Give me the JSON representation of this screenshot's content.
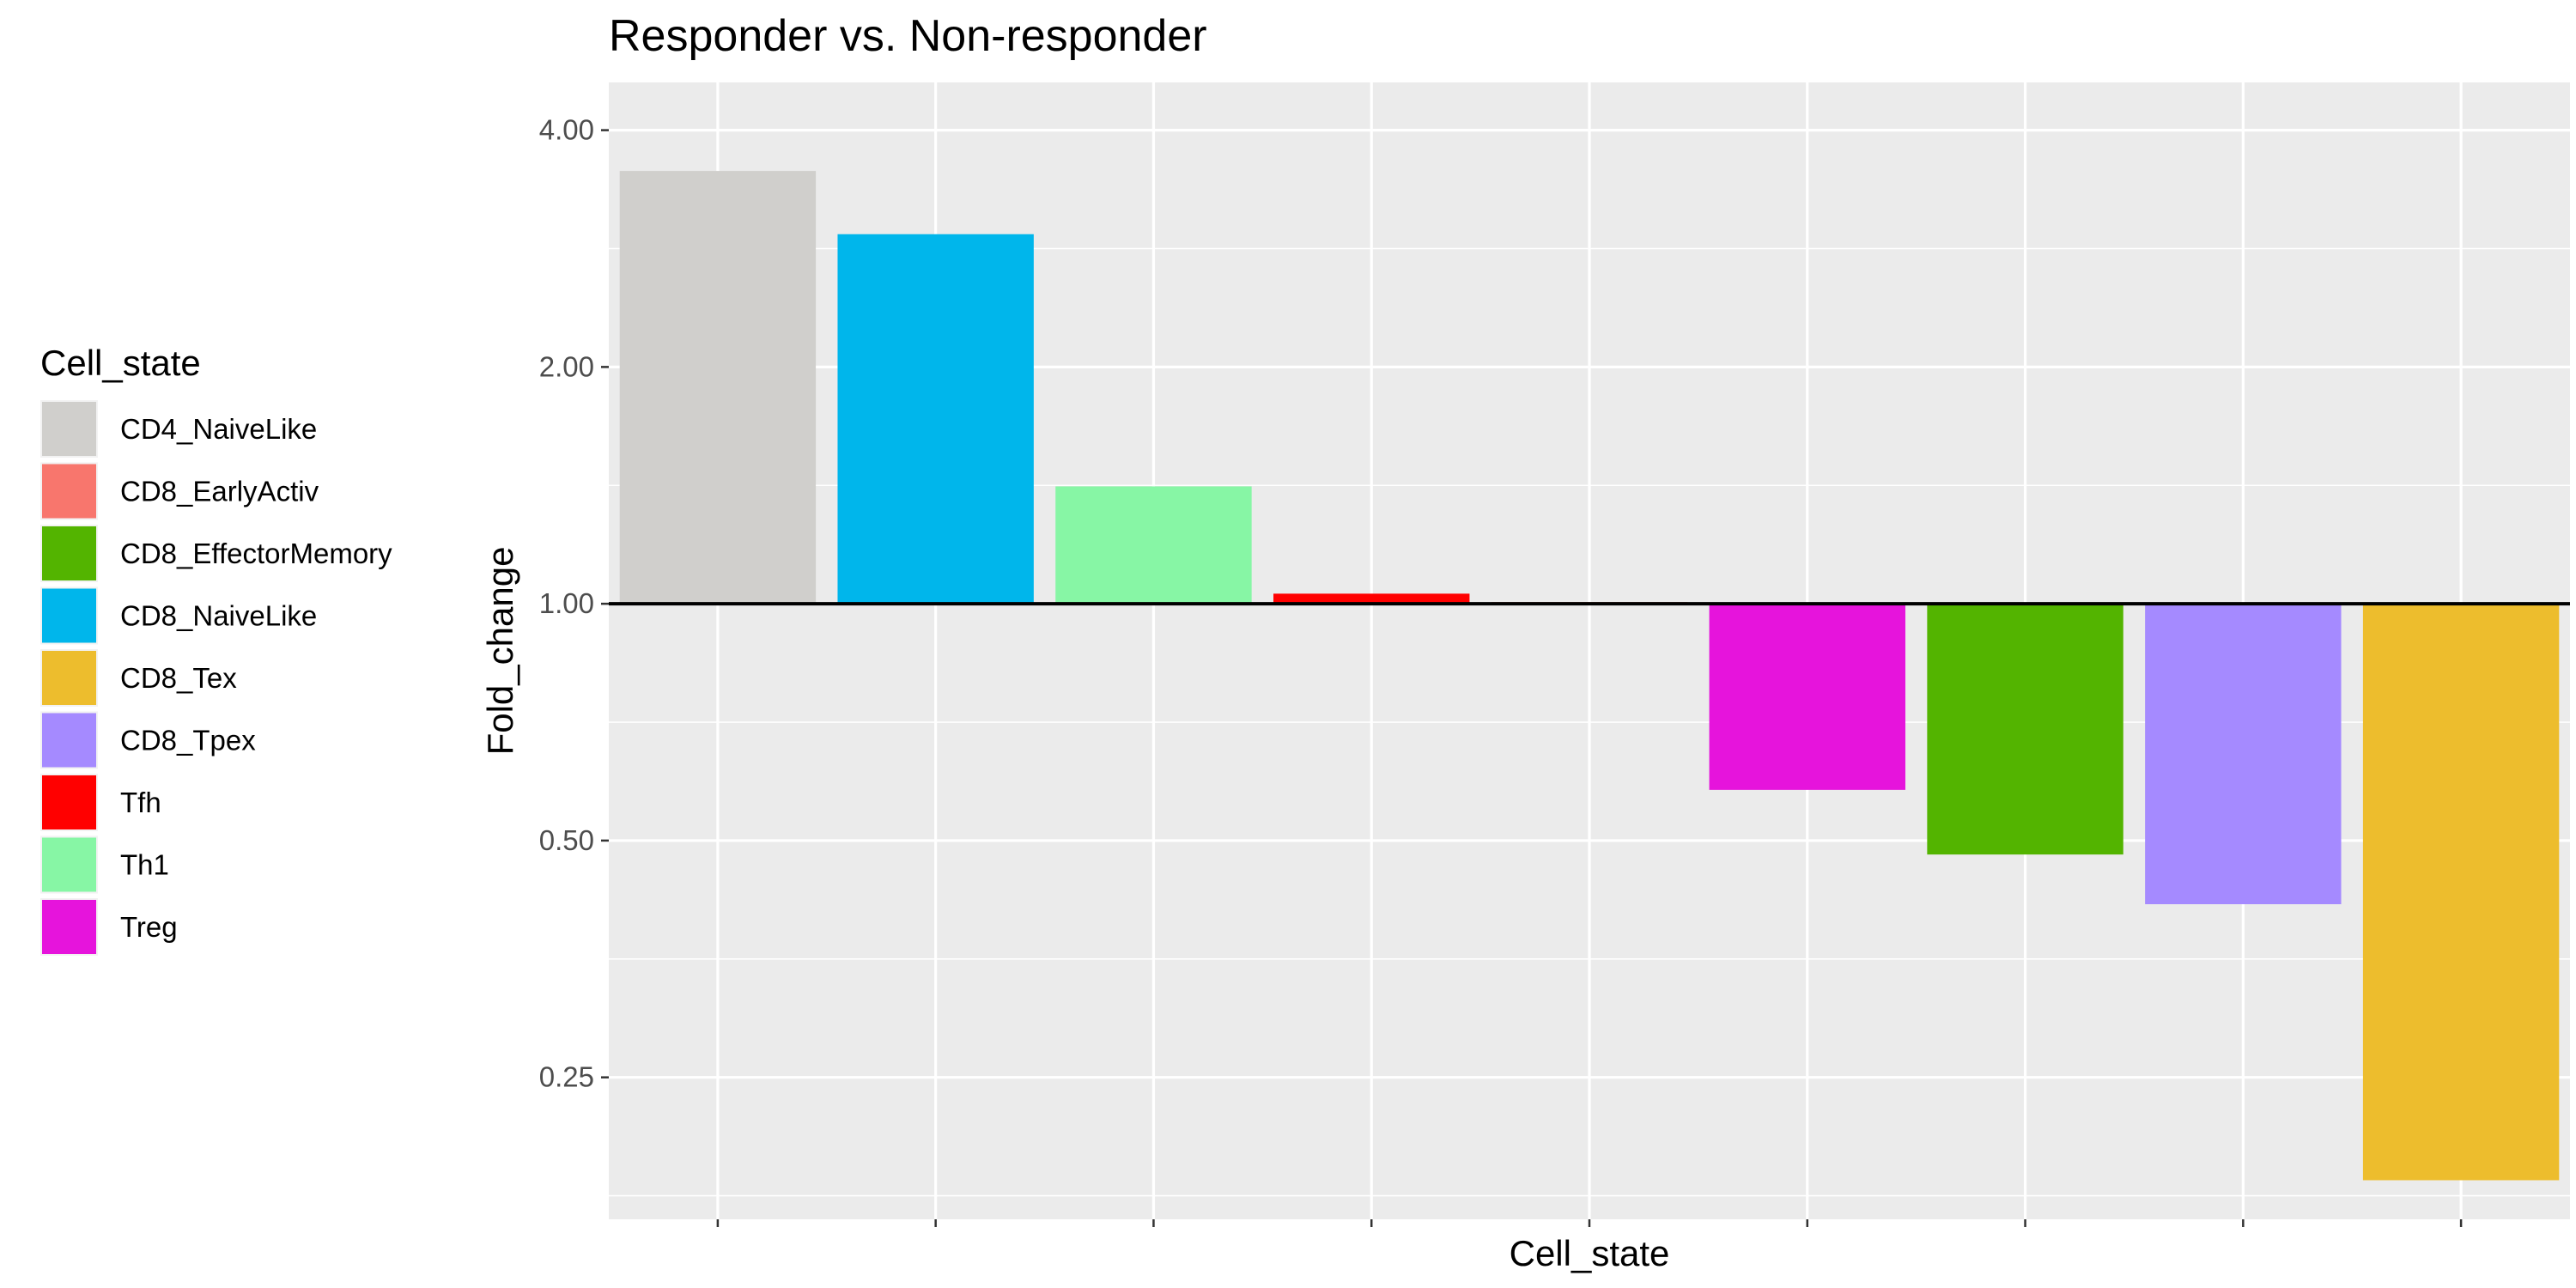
{
  "chart_data": {
    "type": "bar",
    "title": "Responder vs. Non-responder",
    "xlabel": "Cell_state",
    "ylabel": "Fold_change",
    "y_scale": "log2",
    "ylim": [
      0.165,
      4.6
    ],
    "baseline": 1.0,
    "y_ticks": [
      0.25,
      0.5,
      1.0,
      2.0,
      4.0
    ],
    "y_tick_labels": [
      "0.25",
      "0.50",
      "1.00",
      "2.00",
      "4.00"
    ],
    "x_tick_labels_visible": false,
    "grid": true,
    "categories": [
      "CD4_NaiveLike",
      "CD8_NaiveLike",
      "Th1",
      "Tfh",
      "CD8_EarlyActiv",
      "Treg",
      "CD8_EffectorMemory",
      "CD8_Tpex",
      "CD8_Tex"
    ],
    "values": [
      3.55,
      2.95,
      1.41,
      1.03,
      1.005,
      0.58,
      0.48,
      0.415,
      0.185
    ],
    "legend": {
      "title": "Cell_state",
      "position": "left",
      "entries": [
        {
          "label": "CD4_NaiveLike",
          "color": "#D0CFCC"
        },
        {
          "label": "CD8_EarlyActiv",
          "color": "#F8766D"
        },
        {
          "label": "CD8_EffectorMemory",
          "color": "#53B400"
        },
        {
          "label": "CD8_NaiveLike",
          "color": "#00B6EB"
        },
        {
          "label": "CD8_Tex",
          "color": "#EDBD2D"
        },
        {
          "label": "CD8_Tpex",
          "color": "#A58AFF"
        },
        {
          "label": "Tfh",
          "color": "#FF0000"
        },
        {
          "label": "Th1",
          "color": "#87F6A5"
        },
        {
          "label": "Treg",
          "color": "#E614DC"
        }
      ]
    }
  }
}
